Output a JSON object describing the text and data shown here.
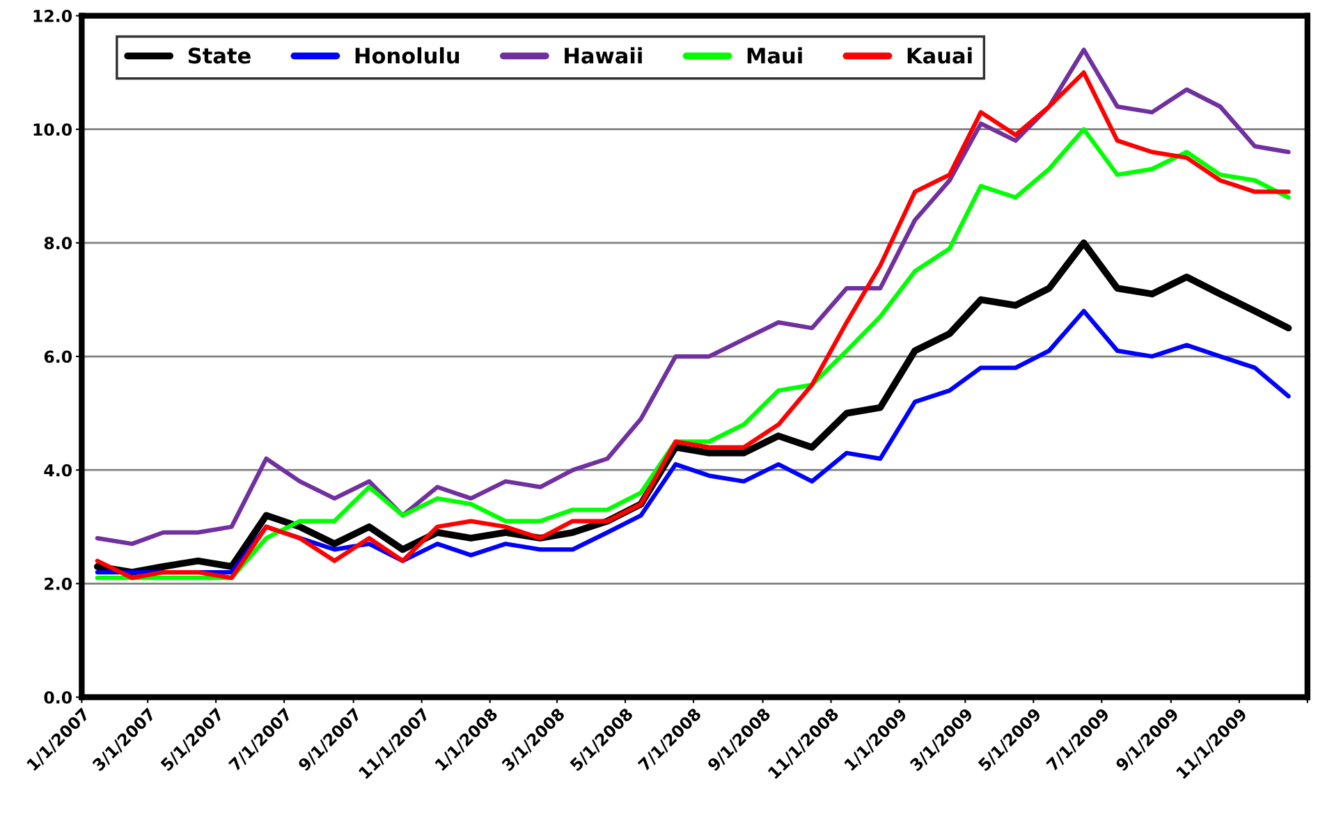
{
  "chart_data": {
    "type": "line",
    "x": [
      "2007-01-15",
      "2007-02-15",
      "2007-03-15",
      "2007-04-15",
      "2007-05-15",
      "2007-06-15",
      "2007-07-15",
      "2007-08-15",
      "2007-09-15",
      "2007-10-15",
      "2007-11-15",
      "2007-12-15",
      "2008-01-15",
      "2008-02-15",
      "2008-03-15",
      "2008-04-15",
      "2008-05-15",
      "2008-06-15",
      "2008-07-15",
      "2008-08-15",
      "2008-09-15",
      "2008-10-15",
      "2008-11-15",
      "2008-12-15",
      "2009-01-15",
      "2009-02-15",
      "2009-03-15",
      "2009-04-15",
      "2009-05-15",
      "2009-06-15",
      "2009-07-15",
      "2009-08-15",
      "2009-09-15",
      "2009-10-15",
      "2009-11-15",
      "2009-12-15"
    ],
    "series": [
      {
        "name": "State",
        "color": "#000000",
        "values": [
          2.3,
          2.2,
          2.3,
          2.4,
          2.3,
          3.2,
          3.0,
          2.7,
          3.0,
          2.6,
          2.9,
          2.8,
          2.9,
          2.8,
          2.9,
          3.1,
          3.4,
          4.4,
          4.3,
          4.3,
          4.6,
          4.4,
          5.0,
          5.1,
          6.1,
          6.4,
          7.0,
          6.9,
          7.2,
          8.0,
          7.2,
          7.1,
          7.4,
          7.1,
          6.8,
          6.5
        ]
      },
      {
        "name": "Honolulu",
        "color": "#0000ff",
        "values": [
          2.2,
          2.2,
          2.2,
          2.2,
          2.2,
          3.0,
          2.8,
          2.6,
          2.7,
          2.4,
          2.7,
          2.5,
          2.7,
          2.6,
          2.6,
          2.9,
          3.2,
          4.1,
          3.9,
          3.8,
          4.1,
          3.8,
          4.3,
          4.2,
          5.2,
          5.4,
          5.8,
          5.8,
          6.1,
          6.8,
          6.1,
          6.0,
          6.2,
          6.0,
          5.8,
          5.3
        ]
      },
      {
        "name": "Hawaii",
        "color": "#7030a0",
        "values": [
          2.8,
          2.7,
          2.9,
          2.9,
          3.0,
          4.2,
          3.8,
          3.5,
          3.8,
          3.2,
          3.7,
          3.5,
          3.8,
          3.7,
          4.0,
          4.2,
          4.9,
          6.0,
          6.0,
          6.3,
          6.6,
          6.5,
          7.2,
          7.2,
          8.4,
          9.1,
          10.1,
          9.8,
          10.4,
          11.4,
          10.4,
          10.3,
          10.7,
          10.4,
          9.7,
          9.6
        ]
      },
      {
        "name": "Maui",
        "color": "#00ff00",
        "values": [
          2.1,
          2.1,
          2.1,
          2.1,
          2.1,
          2.8,
          3.1,
          3.1,
          3.7,
          3.2,
          3.5,
          3.4,
          3.1,
          3.1,
          3.3,
          3.3,
          3.6,
          4.5,
          4.5,
          4.8,
          5.4,
          5.5,
          6.1,
          6.7,
          7.5,
          7.9,
          9.0,
          8.8,
          9.3,
          10.0,
          9.2,
          9.3,
          9.6,
          9.2,
          9.1,
          8.8
        ]
      },
      {
        "name": "Kauai",
        "color": "#ff0000",
        "values": [
          2.4,
          2.1,
          2.2,
          2.2,
          2.1,
          3.0,
          2.8,
          2.4,
          2.8,
          2.4,
          3.0,
          3.1,
          3.0,
          2.8,
          3.1,
          3.1,
          3.4,
          4.5,
          4.4,
          4.4,
          4.8,
          5.5,
          6.6,
          7.6,
          8.9,
          9.2,
          10.3,
          9.9,
          10.4,
          11.0,
          9.8,
          9.6,
          9.5,
          9.1,
          8.9,
          8.9
        ]
      }
    ],
    "xlim": [
      "2007-01-01",
      "2010-01-01"
    ],
    "xticks": [
      {
        "value": "2007-01-01",
        "label": "1/1/2007"
      },
      {
        "value": "2007-03-01",
        "label": "3/1/2007"
      },
      {
        "value": "2007-05-01",
        "label": "5/1/2007"
      },
      {
        "value": "2007-07-01",
        "label": "7/1/2007"
      },
      {
        "value": "2007-09-01",
        "label": "9/1/2007"
      },
      {
        "value": "2007-11-01",
        "label": "11/1/2007"
      },
      {
        "value": "2008-01-01",
        "label": "1/1/2008"
      },
      {
        "value": "2008-03-01",
        "label": "3/1/2008"
      },
      {
        "value": "2008-05-01",
        "label": "5/1/2008"
      },
      {
        "value": "2008-07-01",
        "label": "7/1/2008"
      },
      {
        "value": "2008-09-01",
        "label": "9/1/2008"
      },
      {
        "value": "2008-11-01",
        "label": "11/1/2008"
      },
      {
        "value": "2009-01-01",
        "label": "1/1/2009"
      },
      {
        "value": "2009-03-01",
        "label": "3/1/2009"
      },
      {
        "value": "2009-05-01",
        "label": "5/1/2009"
      },
      {
        "value": "2009-07-01",
        "label": "7/1/2009"
      },
      {
        "value": "2009-09-01",
        "label": "9/1/2009"
      },
      {
        "value": "2009-11-01",
        "label": "11/1/2009"
      },
      {
        "value": "2010-01-01",
        "label": null
      }
    ],
    "ylim": [
      0,
      12
    ],
    "yticks": [
      {
        "value": 0,
        "label": "0.0"
      },
      {
        "value": 2,
        "label": "2.0"
      },
      {
        "value": 4,
        "label": "4.0"
      },
      {
        "value": 6,
        "label": "6.0"
      },
      {
        "value": 8,
        "label": "8.0"
      },
      {
        "value": 10,
        "label": "10.0"
      },
      {
        "value": 12,
        "label": "12.0"
      }
    ],
    "grid": "y",
    "legend": "top left",
    "marker": "none",
    "line_style": "solid"
  }
}
